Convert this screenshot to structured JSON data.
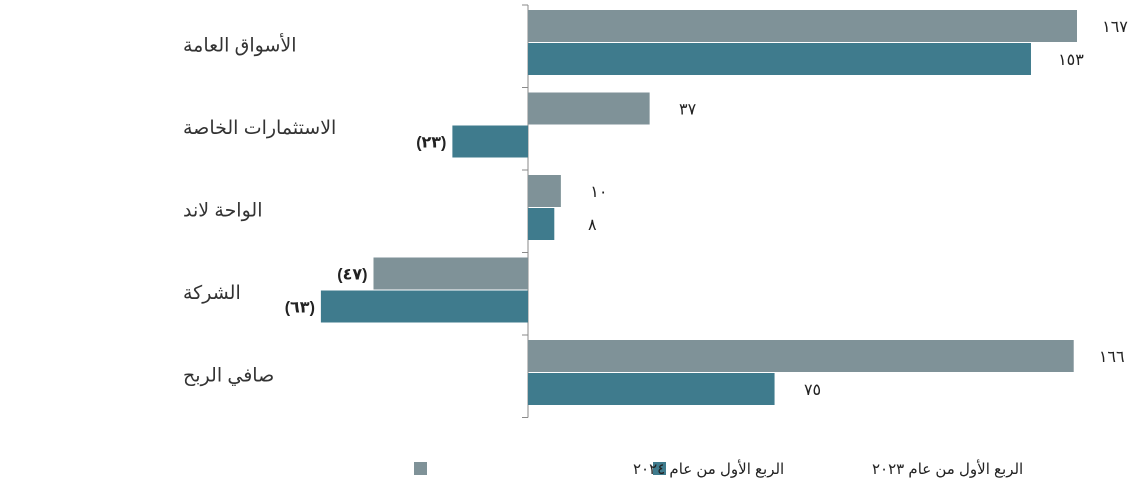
{
  "chart_data": {
    "type": "bar",
    "orientation": "horizontal",
    "categories": [
      "الأسواق العامة",
      "الاستثمارات الخاصة",
      "الواحة لاند",
      "الشركة",
      "صافي الربح"
    ],
    "series": [
      {
        "name": "الربع الأول من عام ٢٠٢٤",
        "color": "#7f9298",
        "values": [
          167,
          37,
          10,
          -47,
          166
        ],
        "labels": [
          "١٦٧",
          "٣٧",
          "١٠",
          "(٤٧)",
          "١٦٦"
        ]
      },
      {
        "name": "الربع الأول من عام ٢٠٢٣",
        "color": "#3f7b8d",
        "values": [
          153,
          -23,
          8,
          -63,
          75
        ],
        "labels": [
          "١٥٣",
          "(٢٣)",
          "٨",
          "(٦٣)",
          "٧٥"
        ]
      }
    ],
    "xlim": [
      -63,
      167
    ],
    "grid": false,
    "legend_position": "bottom-center"
  }
}
